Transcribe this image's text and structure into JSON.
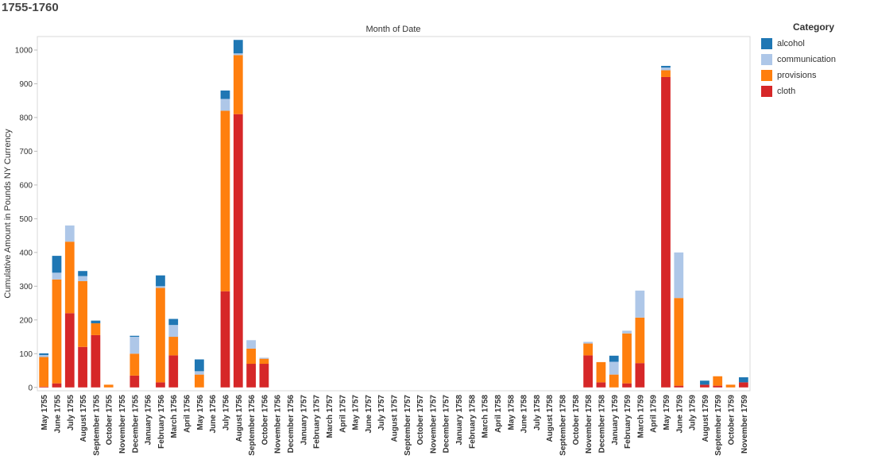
{
  "page": {
    "title": "1755-1760"
  },
  "chart_data": {
    "type": "bar",
    "stacked": true,
    "title": "1755-1760",
    "column_header": "Month of Date",
    "xlabel": "",
    "ylabel": "Cumulative Amount in Pounds NY Currency",
    "ylim": [
      -10,
      1040
    ],
    "yticks": [
      0,
      100,
      200,
      300,
      400,
      500,
      600,
      700,
      800,
      900,
      1000
    ],
    "categories": [
      "May 1755",
      "June 1755",
      "July 1755",
      "August 1755",
      "September 1755",
      "October 1755",
      "November 1755",
      "December 1755",
      "January 1756",
      "February 1756",
      "March 1756",
      "April 1756",
      "May 1756",
      "June 1756",
      "July 1756",
      "August 1756",
      "September 1756",
      "October 1756",
      "November 1756",
      "December 1756",
      "January 1757",
      "February 1757",
      "March 1757",
      "April 1757",
      "May 1757",
      "June 1757",
      "July 1757",
      "August 1757",
      "September 1757",
      "October 1757",
      "November 1757",
      "December 1757",
      "January 1758",
      "February 1758",
      "March 1758",
      "April 1758",
      "May 1758",
      "June 1758",
      "July 1758",
      "August 1758",
      "September 1758",
      "October 1758",
      "November 1758",
      "December 1758",
      "January 1759",
      "February 1759",
      "March 1759",
      "April 1759",
      "May 1759",
      "June 1759",
      "July 1759",
      "August 1759",
      "September 1759",
      "October 1759",
      "November 1759"
    ],
    "series": [
      {
        "name": "cloth",
        "color": "#d62728",
        "values": [
          2,
          12,
          220,
          120,
          155,
          0,
          0,
          35,
          0,
          15,
          95,
          0,
          0,
          0,
          285,
          810,
          70,
          70,
          0,
          0,
          0,
          0,
          0,
          0,
          0,
          0,
          0,
          0,
          0,
          0,
          0,
          0,
          0,
          0,
          0,
          0,
          0,
          0,
          0,
          0,
          0,
          0,
          95,
          15,
          0,
          12,
          72,
          0,
          920,
          5,
          0,
          8,
          5,
          0,
          15
        ]
      },
      {
        "name": "provisions",
        "color": "#ff7f0e",
        "values": [
          88,
          308,
          212,
          195,
          35,
          8,
          0,
          65,
          0,
          280,
          55,
          0,
          38,
          0,
          535,
          175,
          45,
          15,
          0,
          0,
          0,
          0,
          0,
          0,
          0,
          0,
          0,
          0,
          0,
          0,
          0,
          0,
          0,
          0,
          0,
          0,
          0,
          0,
          0,
          0,
          0,
          0,
          35,
          60,
          38,
          148,
          135,
          0,
          20,
          260,
          0,
          0,
          28,
          8,
          0
        ]
      },
      {
        "name": "communication",
        "color": "#aec7e8",
        "values": [
          6,
          20,
          48,
          15,
          0,
          0,
          0,
          50,
          0,
          5,
          35,
          0,
          10,
          0,
          35,
          5,
          25,
          3,
          0,
          0,
          0,
          0,
          0,
          0,
          0,
          0,
          0,
          0,
          0,
          0,
          0,
          0,
          0,
          0,
          0,
          0,
          0,
          0,
          0,
          0,
          0,
          0,
          5,
          0,
          38,
          8,
          80,
          0,
          8,
          135,
          0,
          0,
          0,
          0,
          0
        ]
      },
      {
        "name": "alcohol",
        "color": "#1f77b4",
        "values": [
          5,
          50,
          0,
          15,
          8,
          0,
          0,
          3,
          0,
          32,
          18,
          0,
          35,
          0,
          25,
          40,
          0,
          0,
          0,
          0,
          0,
          0,
          0,
          0,
          0,
          0,
          0,
          0,
          0,
          0,
          0,
          0,
          0,
          0,
          0,
          0,
          0,
          0,
          0,
          0,
          0,
          0,
          0,
          0,
          18,
          0,
          0,
          0,
          5,
          0,
          0,
          12,
          0,
          0,
          15
        ]
      }
    ],
    "legend": {
      "title": "Category",
      "position": "top-right",
      "items": [
        {
          "label": "alcohol",
          "color": "#1f77b4"
        },
        {
          "label": "communication",
          "color": "#aec7e8"
        },
        {
          "label": "provisions",
          "color": "#ff7f0e"
        },
        {
          "label": "cloth",
          "color": "#d62728"
        }
      ]
    },
    "grid": false
  }
}
